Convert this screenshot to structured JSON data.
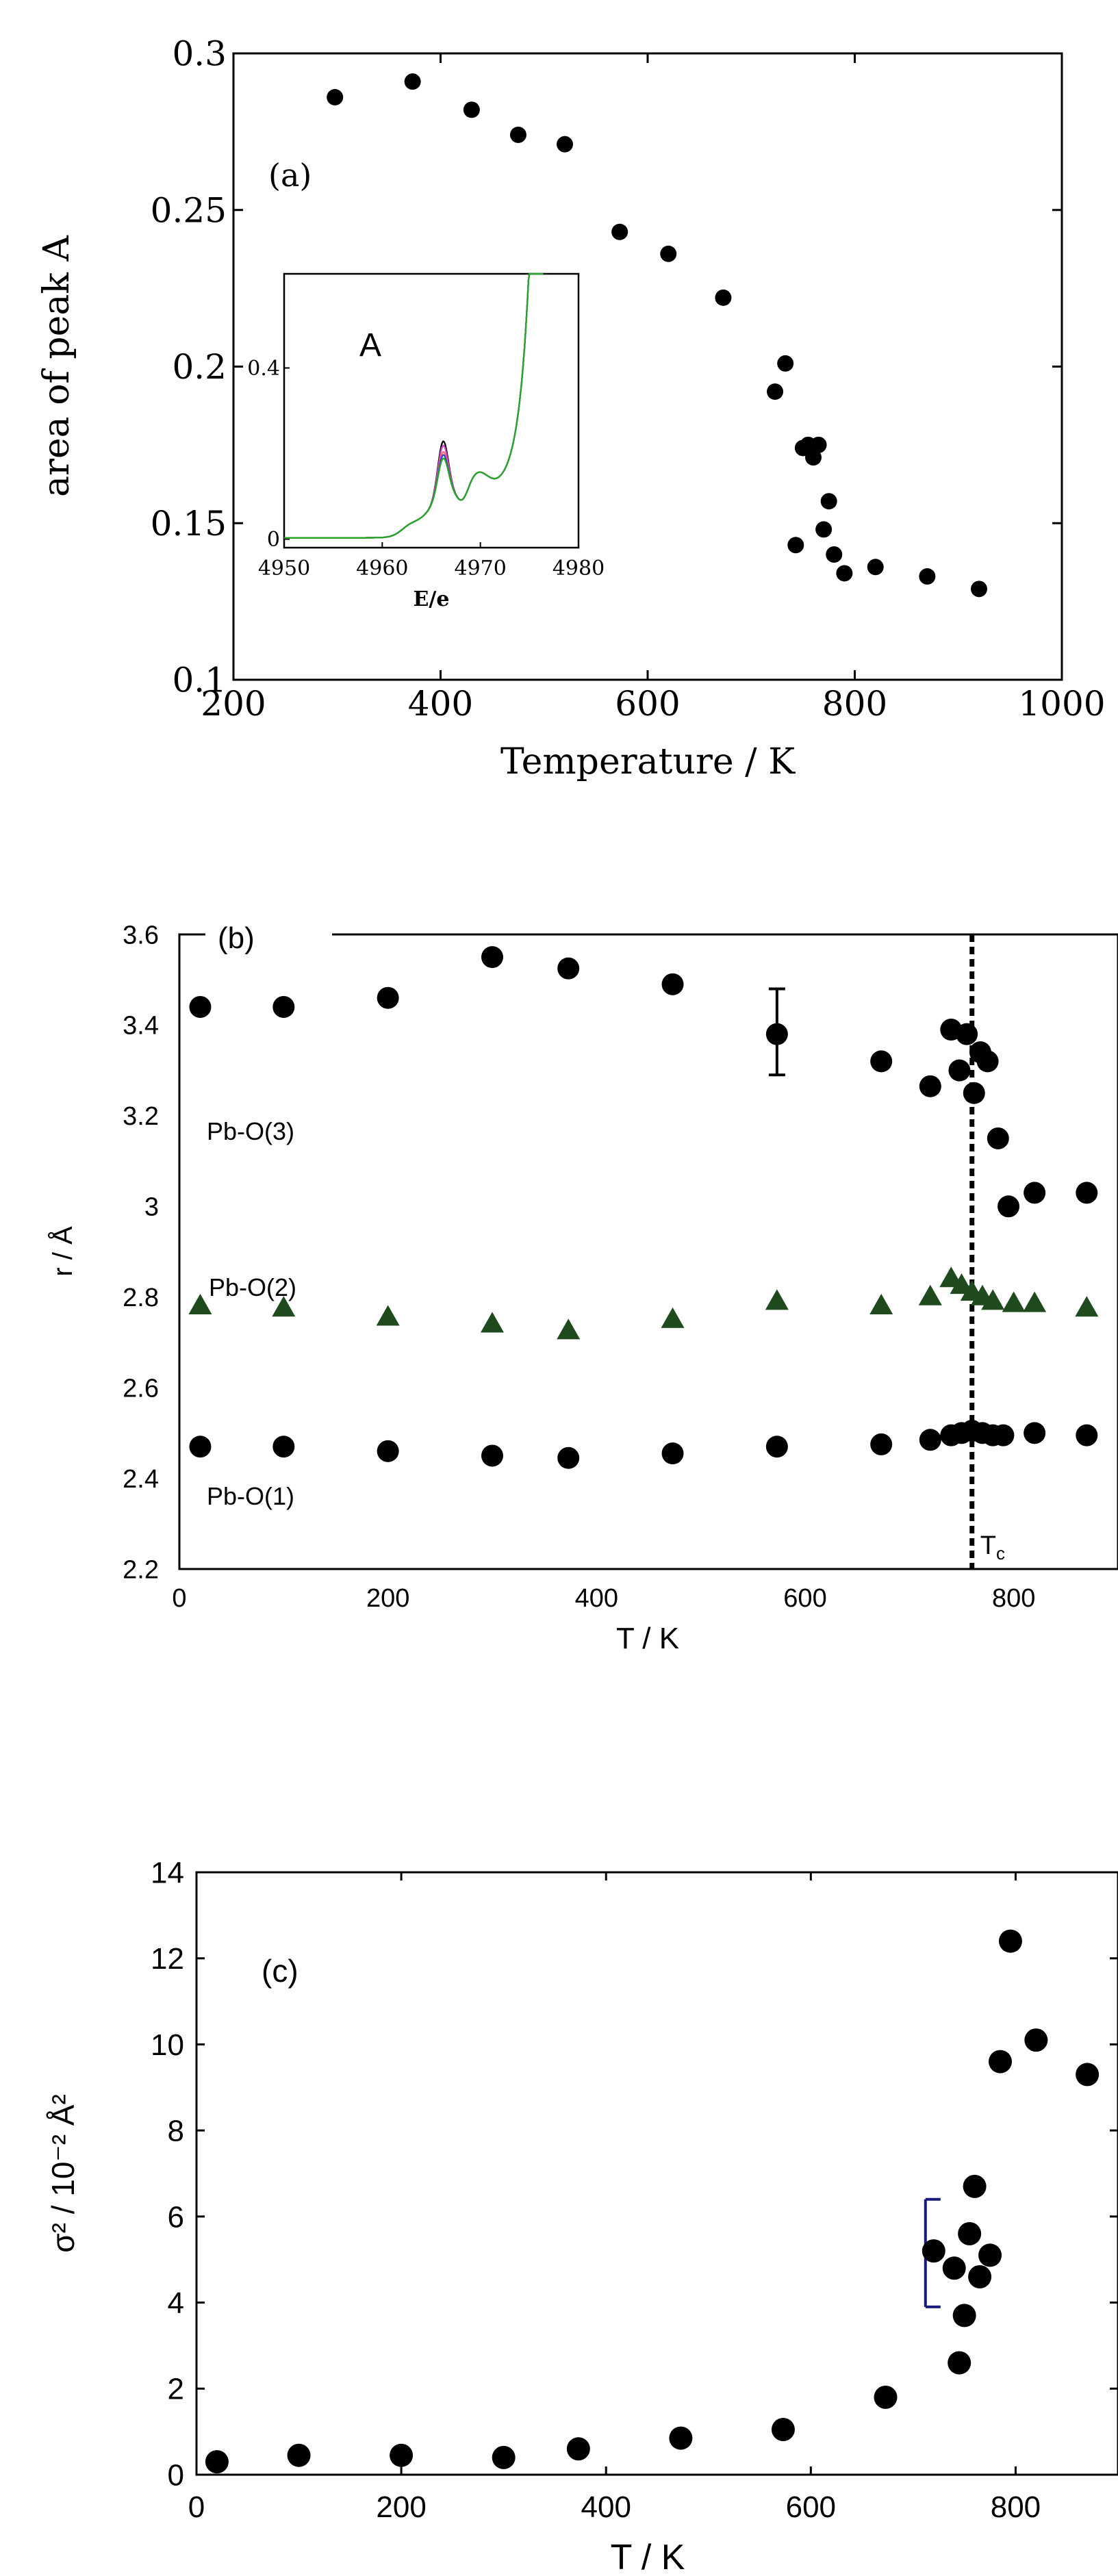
{
  "chart_data": [
    {
      "panel": "(a)",
      "type": "scatter",
      "xlabel": "Temperature / K",
      "ylabel": "area of peak A",
      "xlim": [
        200,
        1000
      ],
      "ylim": [
        0.1,
        0.3
      ],
      "xticks": [
        "200",
        "400",
        "600",
        "800",
        "1000"
      ],
      "yticks": [
        "0.1",
        "0.15",
        "0.2",
        "0.25",
        "0.3"
      ],
      "grid": false,
      "series": [
        {
          "color": "#000000",
          "x": [
            298,
            373,
            430,
            475,
            520,
            573,
            620,
            673,
            723,
            733,
            743,
            750,
            755,
            760,
            765,
            770,
            775,
            780,
            790,
            820,
            870,
            920
          ],
          "y": [
            0.286,
            0.291,
            0.282,
            0.274,
            0.271,
            0.243,
            0.236,
            0.222,
            0.192,
            0.201,
            0.143,
            0.174,
            0.175,
            0.171,
            0.175,
            0.148,
            0.157,
            0.14,
            0.134,
            0.136,
            0.133,
            0.129
          ]
        }
      ],
      "inset": {
        "type": "line",
        "label": "A",
        "xlabel": "E/e",
        "xlim": [
          4950,
          4980
        ],
        "ylim": [
          -0.02,
          0.62
        ],
        "xticks": [
          "4950",
          "4960",
          "4970",
          "4980"
        ],
        "yticks": [
          "0",
          "0.4"
        ],
        "curve_colors": [
          "#000000",
          "#cc44cc",
          "#ff6666",
          "#3344cc",
          "#22aa22"
        ]
      }
    },
    {
      "panel": "(b)",
      "type": "scatter",
      "xlabel": "T / K",
      "ylabel": "r / Å",
      "xlim": [
        0,
        900
      ],
      "ylim": [
        2.2,
        3.6
      ],
      "xticks": [
        "0",
        "200",
        "400",
        "600",
        "800"
      ],
      "yticks": [
        "2.2",
        "2.4",
        "2.6",
        "2.8",
        "3",
        "3.2",
        "3.4",
        "3.6"
      ],
      "annotation": "T",
      "annotation_sub": "c",
      "tc": 760,
      "grid": false,
      "series": [
        {
          "name": "Pb-O(3)",
          "marker": "circle",
          "color": "#000000",
          "x": [
            20,
            100,
            200,
            300,
            373,
            473,
            573,
            673,
            720,
            740,
            748,
            755,
            762,
            768,
            775,
            785,
            795,
            820,
            870
          ],
          "y": [
            3.44,
            3.44,
            3.46,
            3.55,
            3.525,
            3.49,
            3.38,
            3.32,
            3.265,
            3.39,
            3.3,
            3.38,
            3.25,
            3.34,
            3.32,
            3.15,
            3.0,
            3.03,
            3.03
          ],
          "errorbar": {
            "x": 573,
            "y": 3.38,
            "low": 3.29,
            "high": 3.48
          }
        },
        {
          "name": "Pb-O(2)",
          "marker": "triangle",
          "color": "#1e4a1e",
          "x": [
            20,
            100,
            200,
            300,
            373,
            473,
            573,
            673,
            720,
            740,
            750,
            760,
            770,
            780,
            800,
            820,
            870
          ],
          "y": [
            2.78,
            2.775,
            2.755,
            2.74,
            2.725,
            2.75,
            2.79,
            2.78,
            2.8,
            2.84,
            2.825,
            2.81,
            2.8,
            2.79,
            2.785,
            2.785,
            2.775
          ]
        },
        {
          "name": "Pb-O(1)",
          "marker": "circle",
          "color": "#000000",
          "x": [
            20,
            100,
            200,
            300,
            373,
            473,
            573,
            673,
            720,
            740,
            750,
            760,
            770,
            780,
            790,
            820,
            870
          ],
          "y": [
            2.47,
            2.47,
            2.46,
            2.45,
            2.445,
            2.455,
            2.47,
            2.475,
            2.485,
            2.495,
            2.5,
            2.505,
            2.5,
            2.495,
            2.495,
            2.5,
            2.495
          ]
        }
      ]
    },
    {
      "panel": "(c)",
      "type": "scatter",
      "xlabel": "T / K",
      "ylabel": "σ² / 10⁻² Å²",
      "xlim": [
        0,
        900
      ],
      "ylim": [
        0,
        14
      ],
      "xticks": [
        "0",
        "200",
        "400",
        "600",
        "800"
      ],
      "yticks": [
        "0",
        "2",
        "4",
        "6",
        "8",
        "10",
        "12",
        "14"
      ],
      "grid": false,
      "series": [
        {
          "color": "#000000",
          "x": [
            20,
            100,
            200,
            300,
            373,
            473,
            573,
            673,
            720,
            740,
            745,
            750,
            755,
            760,
            765,
            775,
            785,
            795,
            820,
            870
          ],
          "y": [
            0.3,
            0.45,
            0.45,
            0.4,
            0.6,
            0.85,
            1.05,
            1.8,
            5.2,
            4.8,
            2.6,
            3.7,
            5.6,
            6.7,
            4.6,
            5.1,
            9.6,
            12.4,
            10.1,
            9.3
          ],
          "errorbar": {
            "x": 720,
            "y": 5.2,
            "low": 3.9,
            "high": 6.4,
            "color": "#1a1a7a"
          }
        }
      ]
    }
  ]
}
